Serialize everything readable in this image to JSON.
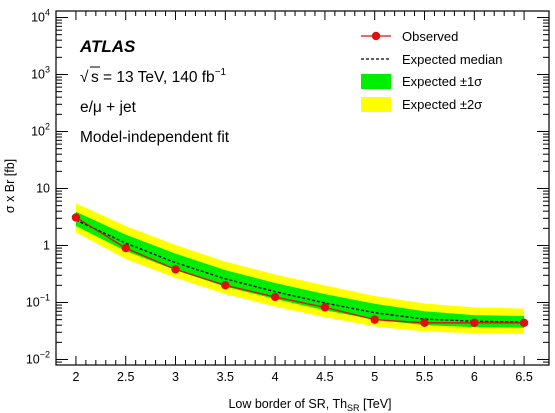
{
  "chart_data": {
    "type": "line",
    "title": "",
    "xlabel": "Low border of SR, Th",
    "xlabel_sub": "SR",
    "xlabel_unit": "[TeV]",
    "ylabel": "σ x Br [fb]",
    "xlim": [
      1.8,
      6.75
    ],
    "ylim": [
      0.008,
      13000
    ],
    "y_log_scale": true,
    "x_ticks": [
      "2",
      "2.5",
      "3",
      "3.5",
      "4",
      "4.5",
      "5",
      "5.5",
      "6",
      "6.5"
    ],
    "y_ticks": [
      {
        "value": 0.01,
        "base": "10",
        "exp": "−2"
      },
      {
        "value": 0.1,
        "base": "10",
        "exp": "−1"
      },
      {
        "value": 1,
        "base": "1",
        "exp": ""
      },
      {
        "value": 10,
        "base": "10",
        "exp": ""
      },
      {
        "value": 100,
        "base": "10",
        "exp": "2"
      },
      {
        "value": 1000,
        "base": "10",
        "exp": "3"
      },
      {
        "value": 10000,
        "base": "10",
        "exp": "4"
      }
    ],
    "x": [
      2,
      2.5,
      3,
      3.5,
      4,
      4.5,
      5,
      5.5,
      6,
      6.5
    ],
    "observed": [
      3.1,
      0.9,
      0.38,
      0.2,
      0.125,
      0.082,
      0.05,
      0.044,
      0.044,
      0.044
    ],
    "expected_median": [
      2.8,
      1.1,
      0.5,
      0.26,
      0.155,
      0.098,
      0.066,
      0.051,
      0.047,
      0.045
    ],
    "band_1sigma": {
      "lower": [
        2.2,
        0.8,
        0.37,
        0.19,
        0.115,
        0.073,
        0.05,
        0.04,
        0.037,
        0.036
      ],
      "upper": [
        3.9,
        1.55,
        0.72,
        0.37,
        0.22,
        0.14,
        0.095,
        0.07,
        0.06,
        0.058
      ]
    },
    "band_2sigma": {
      "lower": [
        1.7,
        0.58,
        0.27,
        0.14,
        0.085,
        0.055,
        0.038,
        0.031,
        0.029,
        0.028
      ],
      "upper": [
        5.5,
        2.2,
        1.02,
        0.52,
        0.31,
        0.2,
        0.13,
        0.096,
        0.082,
        0.078
      ]
    },
    "colors": {
      "observed": "#e01010",
      "expected": "#000000",
      "band_1sigma": "#00ee00",
      "band_2sigma": "#ffff00"
    },
    "legend_placement": "top-right",
    "legend": {
      "observed": "Observed",
      "expected": "Expected median",
      "band_1sigma": "Expected ±1σ",
      "band_2sigma": "Expected ±2σ"
    },
    "annotations": {
      "experiment": "ATLAS",
      "sqrt_s_label": "s = 13 TeV, 140 fb",
      "sqrt_s_exponent": "−1",
      "channel": "e/μ + jet",
      "fit": "Model-independent fit"
    }
  }
}
